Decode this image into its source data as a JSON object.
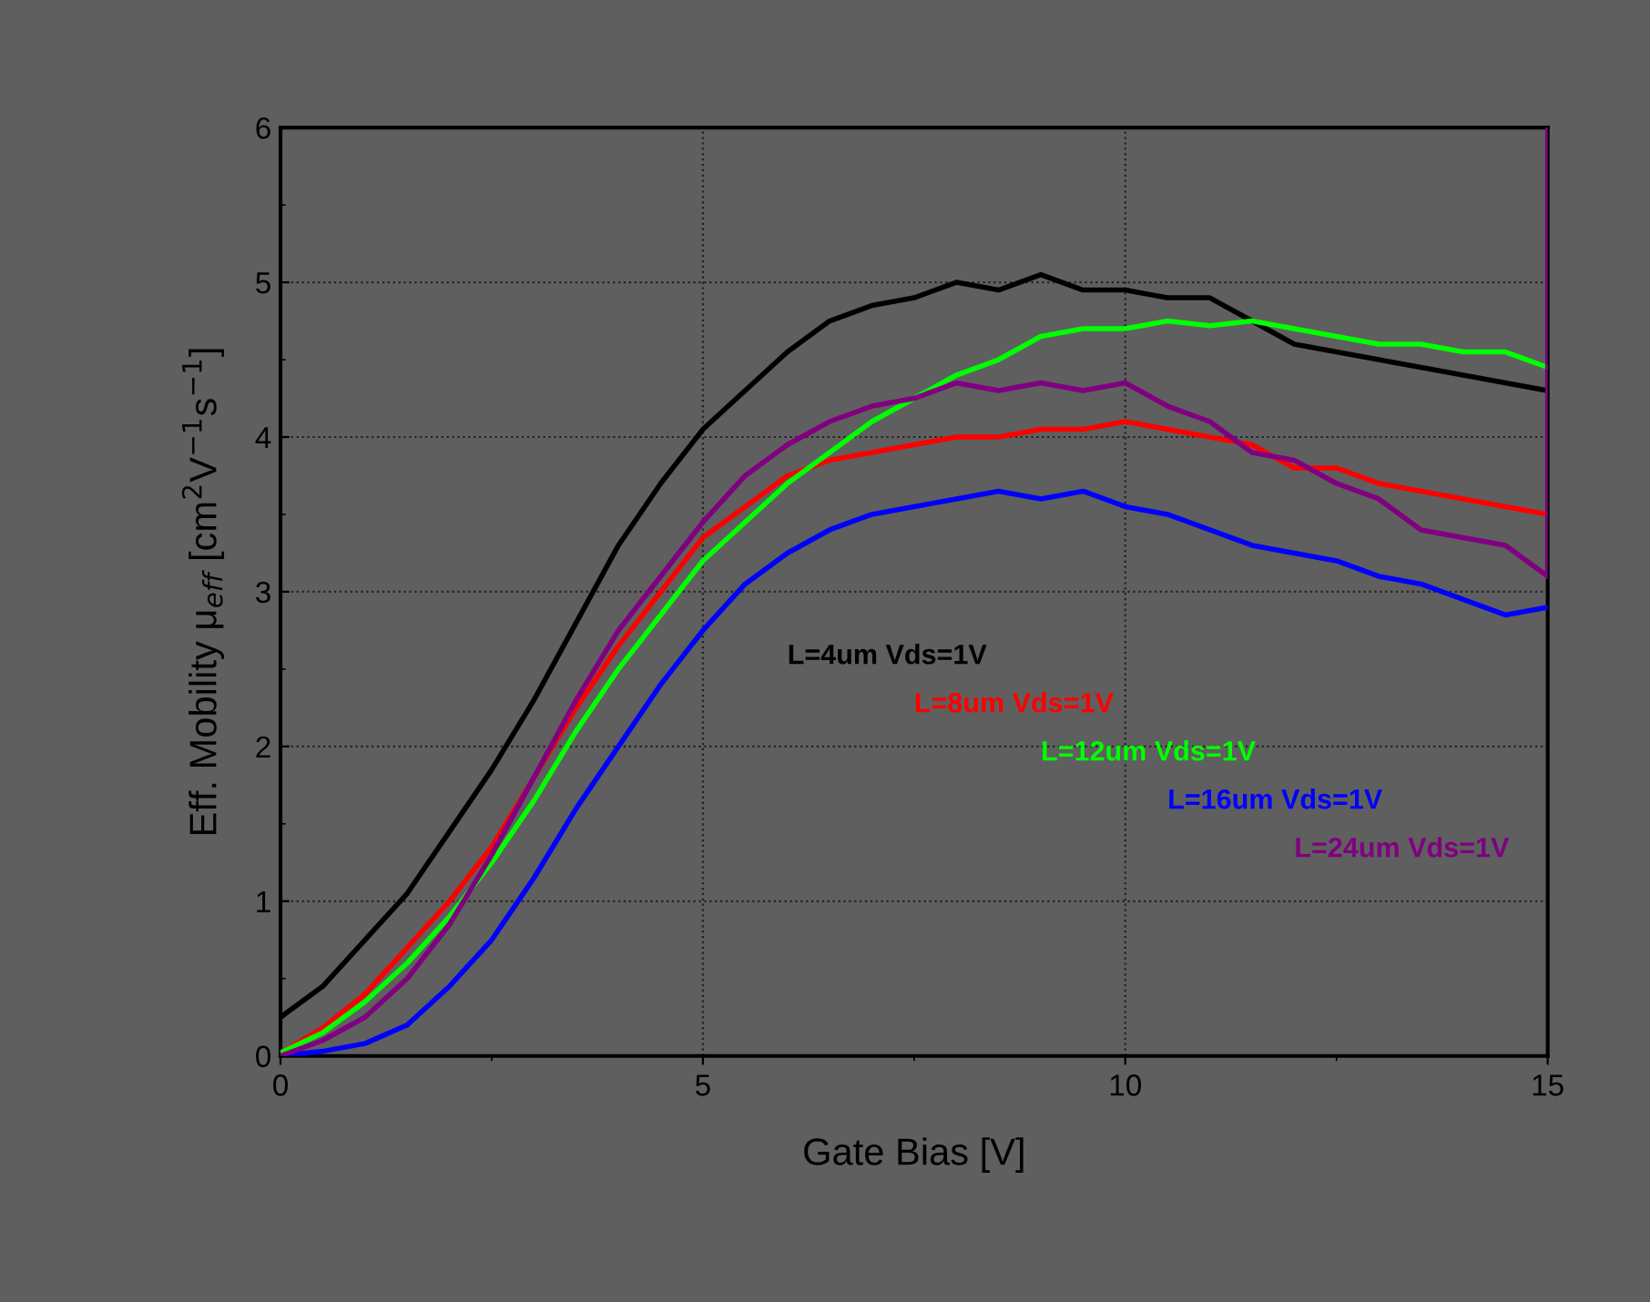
{
  "chart_data": {
    "type": "line",
    "xlabel": "Gate Bias [V]",
    "ylabel": "Eff. Mobility μ$_{eff}$ [cm$^{2}$V$^{−1}$s$^{−1}$]",
    "x": [
      0,
      0.5,
      1,
      1.5,
      2,
      2.5,
      3,
      3.5,
      4,
      4.5,
      5,
      5.5,
      6,
      6.5,
      7,
      7.5,
      8,
      8.5,
      9,
      9.5,
      10,
      10.5,
      11,
      11.5,
      12,
      12.5,
      13,
      13.5,
      14,
      14.5,
      15
    ],
    "series": [
      {
        "name": "L=4um Vds=1V",
        "color": "#000000",
        "values": [
          0.25,
          0.45,
          0.75,
          1.05,
          1.45,
          1.85,
          2.3,
          2.8,
          3.3,
          3.7,
          4.05,
          4.3,
          4.55,
          4.75,
          4.85,
          4.9,
          5.0,
          4.95,
          5.05,
          4.95,
          4.95,
          4.9,
          4.9,
          4.75,
          4.6,
          4.55,
          4.5,
          4.45,
          4.4,
          4.35,
          4.3
        ]
      },
      {
        "name": "L=8um Vds=1V",
        "color": "#ff0000",
        "values": [
          0.02,
          0.18,
          0.4,
          0.7,
          1.0,
          1.35,
          1.8,
          2.25,
          2.65,
          3.0,
          3.35,
          3.55,
          3.75,
          3.85,
          3.9,
          3.95,
          4.0,
          4.0,
          4.05,
          4.05,
          4.1,
          4.05,
          4.0,
          3.95,
          3.8,
          3.8,
          3.7,
          3.65,
          3.6,
          3.55,
          3.5
        ]
      },
      {
        "name": "L=12um Vds=1V",
        "color": "#00ff00",
        "values": [
          0.02,
          0.15,
          0.35,
          0.6,
          0.9,
          1.25,
          1.65,
          2.1,
          2.5,
          2.85,
          3.2,
          3.45,
          3.7,
          3.9,
          4.1,
          4.25,
          4.4,
          4.5,
          4.65,
          4.7,
          4.7,
          4.75,
          4.72,
          4.75,
          4.7,
          4.65,
          4.6,
          4.6,
          4.55,
          4.55,
          4.45
        ]
      },
      {
        "name": "L=16um Vds=1V",
        "color": "#0000ff",
        "values": [
          0.0,
          0.03,
          0.08,
          0.2,
          0.45,
          0.75,
          1.15,
          1.6,
          2.0,
          2.4,
          2.75,
          3.05,
          3.25,
          3.4,
          3.5,
          3.55,
          3.6,
          3.65,
          3.6,
          3.65,
          3.55,
          3.5,
          3.4,
          3.3,
          3.25,
          3.2,
          3.1,
          3.05,
          2.95,
          2.85,
          2.9
        ]
      },
      {
        "name": "L=24um Vds=1V",
        "color": "#800080",
        "x": [
          0,
          0.5,
          1,
          1.5,
          2,
          2.5,
          3,
          3.5,
          4,
          4.5,
          5,
          5.5,
          6,
          6.5,
          7,
          7.5,
          8,
          8.5,
          9,
          9.5,
          10,
          10.5,
          11,
          11.5,
          12,
          12.5,
          13,
          13.5,
          14,
          14.5,
          15,
          15
        ],
        "values": [
          0.0,
          0.1,
          0.25,
          0.5,
          0.85,
          1.3,
          1.8,
          2.3,
          2.75,
          3.1,
          3.45,
          3.75,
          3.95,
          4.1,
          4.2,
          4.25,
          4.35,
          4.3,
          4.35,
          4.3,
          4.35,
          4.2,
          4.1,
          3.9,
          3.85,
          3.7,
          3.6,
          3.4,
          3.35,
          3.3,
          3.1,
          6.0
        ]
      }
    ],
    "xlim": [
      0,
      15
    ],
    "xticks": [
      0,
      5,
      10,
      15
    ],
    "ylim": [
      0,
      6
    ],
    "yticks": [
      0,
      1,
      2,
      3,
      4,
      5,
      6
    ],
    "grid": true,
    "legend": false,
    "marker": "none",
    "line_style": "solid"
  }
}
